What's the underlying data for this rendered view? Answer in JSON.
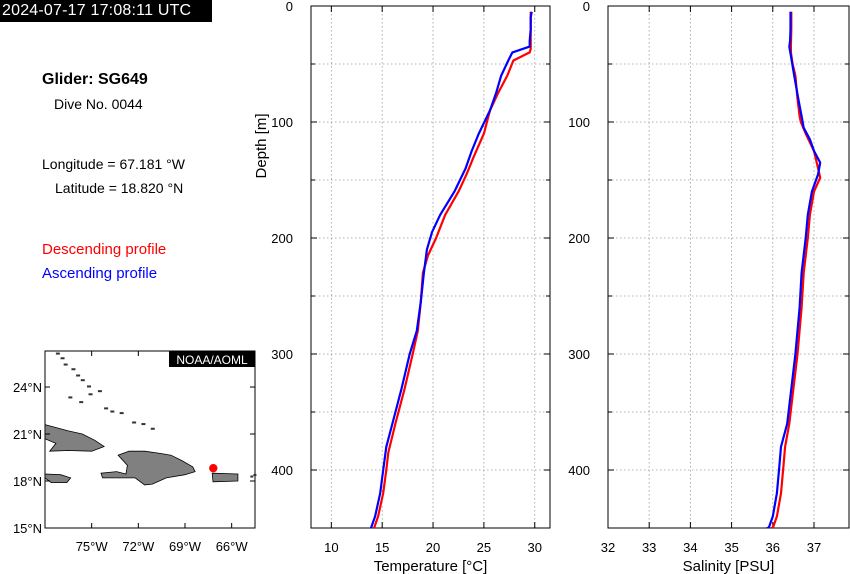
{
  "header": {
    "timestamp": "2024-07-17 17:08:11 UTC"
  },
  "info": {
    "glider": "Glider: SG649",
    "dive": "Dive No. 0044",
    "longitude": "Longitude = 67.181 °W",
    "latitude": "Latitude = 18.820 °N"
  },
  "legend": {
    "descending": "Descending profile",
    "ascending": "Ascending profile",
    "descending_color": "#ff0000",
    "ascending_color": "#0000ff"
  },
  "map": {
    "badge": "NOAA/AOML",
    "lat_labels": [
      "24°N",
      "21°N",
      "18°N",
      "15°N"
    ],
    "lon_labels": [
      "75°W",
      "72°W",
      "69°W",
      "66°W"
    ],
    "glider_marker": {
      "lon": -67.181,
      "lat": 18.82
    },
    "land_color": "#808080",
    "marker_color": "#ff0000"
  },
  "chart_data": [
    {
      "type": "line",
      "xlabel": "Temperature [°C]",
      "ylabel": "Depth [m]",
      "xlim": [
        8,
        31.5
      ],
      "ylim": [
        450,
        0
      ],
      "xticks": [
        "10",
        "15",
        "20",
        "25",
        "30"
      ],
      "yticks": [
        "0",
        "100",
        "200",
        "300",
        "400"
      ],
      "grid": true,
      "series": [
        {
          "name": "Descending profile",
          "color": "#ff0000",
          "x": [
            29.6,
            29.6,
            29.6,
            29.6,
            29.6,
            29.5,
            27.9,
            27.3,
            26.4,
            25.6,
            25.0,
            24.0,
            23.3,
            22.5,
            21.2,
            20.3,
            19.5,
            19.0,
            18.8,
            18.5,
            18.0,
            17.2,
            16.3,
            15.6,
            15.4,
            15.1,
            14.6,
            14.2
          ],
          "y": [
            5,
            10,
            20,
            30,
            37,
            40,
            47,
            60,
            75,
            90,
            110,
            130,
            145,
            160,
            180,
            200,
            215,
            230,
            255,
            280,
            300,
            330,
            360,
            385,
            400,
            420,
            440,
            450
          ]
        },
        {
          "name": "Ascending profile",
          "color": "#0000ff",
          "x": [
            29.7,
            29.6,
            29.6,
            29.5,
            29.5,
            27.8,
            27.4,
            26.7,
            26.2,
            25.6,
            24.5,
            23.8,
            23.2,
            22.1,
            20.7,
            19.9,
            19.4,
            19.1,
            18.8,
            18.4,
            17.7,
            16.9,
            16.0,
            15.4,
            15.1,
            14.8,
            14.3,
            13.9
          ],
          "y": [
            5,
            10,
            20,
            30,
            35,
            40,
            47,
            60,
            75,
            90,
            110,
            125,
            140,
            160,
            180,
            195,
            210,
            230,
            255,
            280,
            300,
            330,
            360,
            380,
            400,
            420,
            440,
            450
          ]
        }
      ]
    },
    {
      "type": "line",
      "xlabel": "Salinity [PSU]",
      "ylabel": "",
      "xlim": [
        32,
        37.85
      ],
      "ylim": [
        450,
        0
      ],
      "xticks": [
        "32",
        "33",
        "34",
        "35",
        "36",
        "37"
      ],
      "yticks": [
        "0",
        "100",
        "200",
        "300",
        "400"
      ],
      "grid": true,
      "series": [
        {
          "name": "Descending profile",
          "color": "#ff0000",
          "x": [
            36.45,
            36.45,
            36.44,
            36.44,
            36.48,
            36.55,
            36.6,
            36.65,
            36.68,
            36.8,
            37.0,
            37.1,
            37.15,
            37.0,
            36.9,
            36.85,
            36.75,
            36.7,
            36.6,
            36.5,
            36.4,
            36.3,
            36.25,
            36.2,
            36.1,
            36.0,
            35.95
          ],
          "y": [
            5,
            20,
            35,
            40,
            50,
            60,
            80,
            95,
            100,
            110,
            125,
            140,
            148,
            160,
            180,
            200,
            230,
            260,
            300,
            330,
            360,
            380,
            400,
            420,
            440,
            450,
            450
          ]
        },
        {
          "name": "Ascending profile",
          "color": "#0000ff",
          "x": [
            36.43,
            36.43,
            36.42,
            36.4,
            36.45,
            36.52,
            36.62,
            36.7,
            36.75,
            36.9,
            37.0,
            37.15,
            37.1,
            36.95,
            36.85,
            36.8,
            36.7,
            36.65,
            36.55,
            36.45,
            36.35,
            36.2,
            36.15,
            36.1,
            36.0,
            35.9,
            35.85
          ],
          "y": [
            5,
            20,
            30,
            35,
            45,
            60,
            80,
            95,
            105,
            115,
            125,
            135,
            145,
            160,
            180,
            200,
            230,
            260,
            300,
            330,
            360,
            380,
            400,
            420,
            440,
            450,
            450
          ]
        }
      ]
    }
  ]
}
